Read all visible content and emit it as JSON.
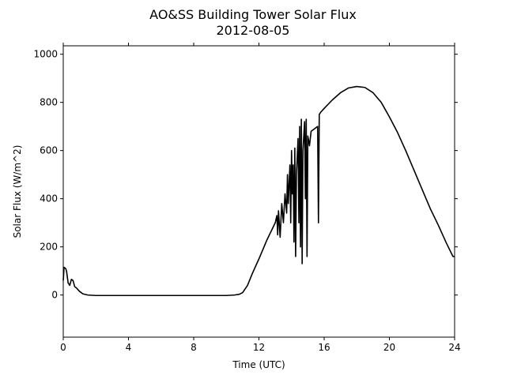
{
  "chart_data": {
    "type": "line",
    "title": "AO&SS Building Tower Solar Flux",
    "subtitle": "2012-08-05",
    "x_label": "Time (UTC)",
    "y_label": "Solar Flux (W/m^2)",
    "xlim": [
      0,
      24
    ],
    "xticks": [
      0,
      4,
      8,
      12,
      16,
      20,
      24
    ],
    "ylim": [
      -175,
      1035
    ],
    "yticks": [
      0,
      200,
      400,
      600,
      800,
      1000
    ],
    "grid": false,
    "series": [
      {
        "color": "#000000",
        "x": [
          0,
          0.05,
          0.15,
          0.2,
          0.3,
          0.4,
          0.5,
          0.6,
          0.7,
          0.8,
          1.0,
          1.2,
          1.5,
          2,
          4,
          6,
          8,
          10,
          10.5,
          10.8,
          11,
          11.3,
          11.6,
          12,
          12.5,
          13.0,
          13.1,
          13.15,
          13.2,
          13.3,
          13.4,
          13.5,
          13.6,
          13.7,
          13.75,
          13.8,
          13.9,
          13.95,
          14.0,
          14.05,
          14.1,
          14.15,
          14.2,
          14.25,
          14.3,
          14.4,
          14.45,
          14.5,
          14.55,
          14.6,
          14.65,
          14.7,
          14.8,
          14.85,
          14.9,
          14.95,
          15.0,
          15.1,
          15.2,
          15.4,
          15.6,
          15.65,
          15.7,
          15.8,
          16,
          16.5,
          17,
          17.5,
          18,
          18.5,
          19,
          19.5,
          20,
          20.5,
          21,
          21.5,
          22,
          22.5,
          23,
          23.5,
          23.9,
          24
        ],
        "values": [
          60,
          115,
          110,
          100,
          50,
          40,
          65,
          60,
          35,
          30,
          15,
          5,
          0,
          -2,
          -2,
          -2,
          -2,
          -2,
          0,
          3,
          10,
          40,
          90,
          150,
          230,
          300,
          330,
          250,
          350,
          240,
          380,
          300,
          420,
          340,
          500,
          380,
          540,
          300,
          600,
          420,
          540,
          220,
          610,
          160,
          500,
          650,
          300,
          700,
          200,
          730,
          130,
          600,
          720,
          400,
          730,
          160,
          660,
          620,
          680,
          690,
          700,
          300,
          750,
          760,
          775,
          810,
          840,
          860,
          866,
          862,
          840,
          800,
          740,
          675,
          600,
          520,
          440,
          360,
          290,
          215,
          160,
          160
        ]
      }
    ]
  }
}
